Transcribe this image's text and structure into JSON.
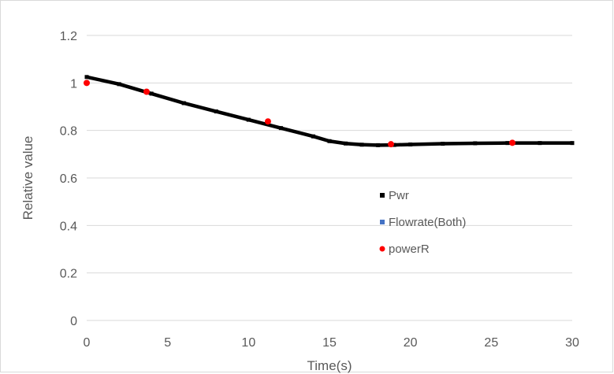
{
  "chart_data": {
    "type": "scatter",
    "title": "",
    "xlabel": "Time(s)",
    "ylabel": "Relative value",
    "xlim": [
      0,
      30
    ],
    "ylim": [
      0,
      1.2
    ],
    "x_ticks": [
      "0",
      "5",
      "10",
      "15",
      "20",
      "25",
      "30"
    ],
    "y_ticks": [
      "0",
      "0.2",
      "0.4",
      "0.6",
      "0.8",
      "1",
      "1.2"
    ],
    "grid": "horizontal",
    "legend_position": "center-right",
    "series": [
      {
        "name": "Pwr",
        "marker": "square",
        "color": "#000000",
        "x": [
          0,
          2,
          4,
          6,
          8,
          10,
          12,
          14,
          15,
          16,
          17,
          18,
          19,
          20,
          22,
          24,
          26,
          28,
          30
        ],
        "y": [
          1.025,
          0.995,
          0.955,
          0.915,
          0.88,
          0.845,
          0.81,
          0.775,
          0.755,
          0.745,
          0.74,
          0.738,
          0.739,
          0.741,
          0.744,
          0.746,
          0.747,
          0.747,
          0.747
        ]
      },
      {
        "name": "Flowrate(Both)",
        "marker": "square",
        "color": "#4472c4",
        "x": [],
        "y": []
      },
      {
        "name": "powerR",
        "marker": "circle",
        "color": "#ff0000",
        "x": [
          0,
          3.7,
          11.2,
          18.8,
          26.3
        ],
        "y": [
          1.0,
          0.963,
          0.838,
          0.742,
          0.748
        ]
      }
    ]
  }
}
